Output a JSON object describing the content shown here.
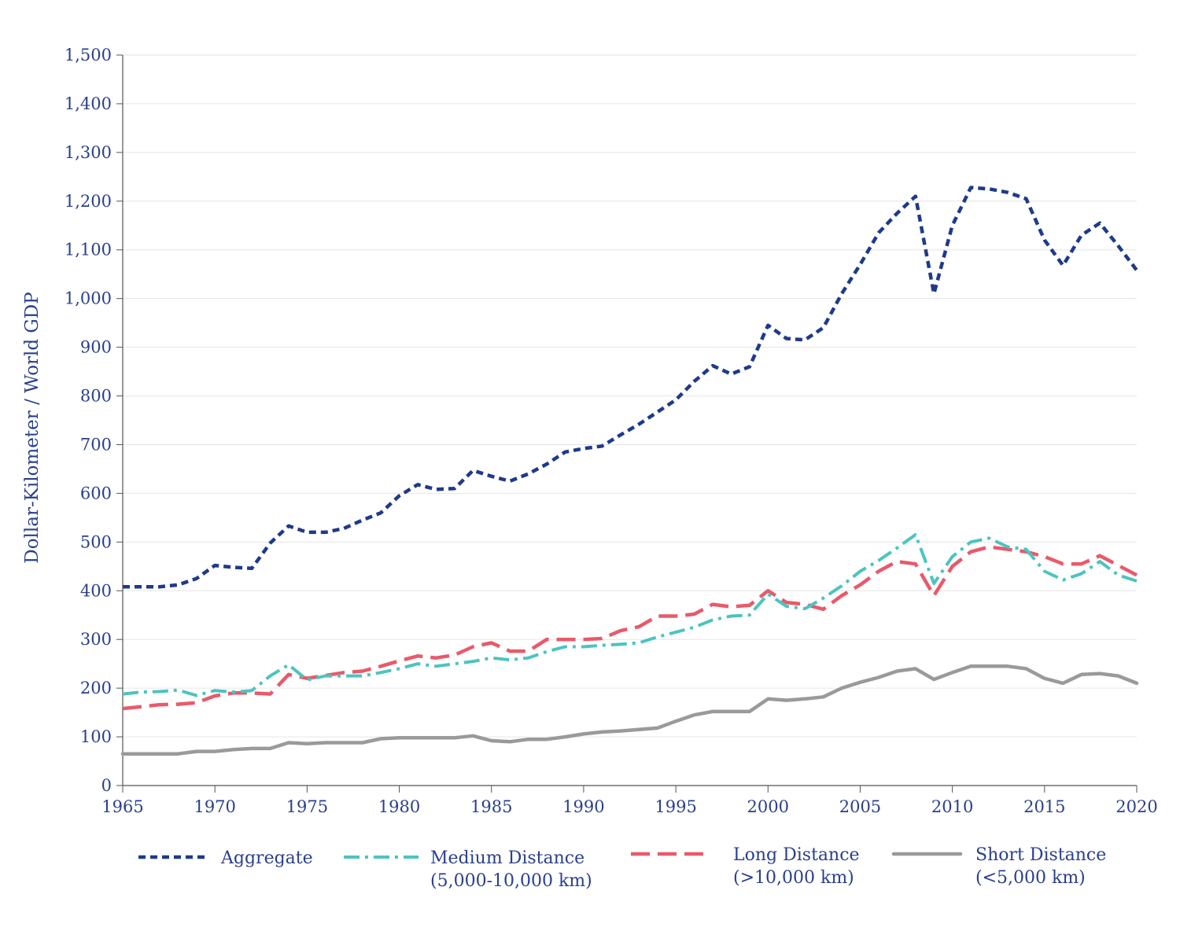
{
  "chart_data": {
    "type": "line",
    "title": "",
    "xlabel": "",
    "ylabel": "Dollar-Kilometer / World GDP",
    "xlim": [
      1965,
      2020
    ],
    "ylim": [
      0,
      1500
    ],
    "x_ticks": [
      "1965",
      "1970",
      "1975",
      "1980",
      "1985",
      "1990",
      "1995",
      "2000",
      "2005",
      "2010",
      "2015",
      "2020"
    ],
    "y_ticks": [
      "0",
      "100",
      "200",
      "300",
      "400",
      "500",
      "600",
      "700",
      "800",
      "900",
      "1,000",
      "1,100",
      "1,200",
      "1,300",
      "1,400",
      "1,500"
    ],
    "grid": "horizontal",
    "legend_position": "bottom",
    "series": [
      {
        "name": "Aggregate",
        "color": "#1f3a8a",
        "style": "dotted",
        "x": [
          1965,
          1966,
          1967,
          1968,
          1969,
          1970,
          1971,
          1972,
          1973,
          1974,
          1975,
          1976,
          1977,
          1978,
          1979,
          1980,
          1981,
          1982,
          1983,
          1984,
          1985,
          1986,
          1987,
          1988,
          1989,
          1990,
          1991,
          1992,
          1993,
          1994,
          1995,
          1996,
          1997,
          1998,
          1999,
          2000,
          2001,
          2002,
          2003,
          2004,
          2005,
          2006,
          2007,
          2008,
          2009,
          2010,
          2011,
          2012,
          2013,
          2014,
          2015,
          2016,
          2017,
          2018,
          2019,
          2020
        ],
        "values": [
          408,
          408,
          408,
          412,
          425,
          452,
          448,
          446,
          498,
          533,
          520,
          520,
          528,
          545,
          560,
          595,
          618,
          608,
          610,
          647,
          635,
          625,
          640,
          660,
          685,
          692,
          697,
          720,
          742,
          767,
          792,
          830,
          862,
          845,
          860,
          945,
          918,
          915,
          940,
          1010,
          1070,
          1135,
          1175,
          1210,
          1010,
          1150,
          1228,
          1225,
          1218,
          1205,
          1120,
          1068,
          1130,
          1155,
          1108,
          1058
        ]
      },
      {
        "name": "Medium Distance",
        "name_line2": "(5,000-10,000 km)",
        "color": "#4cc4c0",
        "style": "dash-dot",
        "x": [
          1965,
          1966,
          1967,
          1968,
          1969,
          1970,
          1971,
          1972,
          1973,
          1974,
          1975,
          1976,
          1977,
          1978,
          1979,
          1980,
          1981,
          1982,
          1983,
          1984,
          1985,
          1986,
          1987,
          1988,
          1989,
          1990,
          1991,
          1992,
          1993,
          1994,
          1995,
          1996,
          1997,
          1998,
          1999,
          2000,
          2001,
          2002,
          2003,
          2004,
          2005,
          2006,
          2007,
          2008,
          2009,
          2010,
          2011,
          2012,
          2013,
          2014,
          2015,
          2016,
          2017,
          2018,
          2019,
          2020
        ],
        "values": [
          188,
          192,
          193,
          196,
          185,
          195,
          192,
          195,
          225,
          248,
          217,
          225,
          225,
          225,
          232,
          240,
          250,
          245,
          250,
          255,
          262,
          258,
          262,
          275,
          285,
          285,
          288,
          290,
          293,
          305,
          315,
          325,
          340,
          348,
          350,
          393,
          368,
          363,
          385,
          410,
          440,
          462,
          488,
          515,
          415,
          470,
          500,
          508,
          490,
          485,
          440,
          422,
          435,
          460,
          432,
          420
        ]
      },
      {
        "name": "Long Distance",
        "name_line2": "(>10,000 km)",
        "color": "#e85a6a",
        "style": "long-dash",
        "x": [
          1965,
          1966,
          1967,
          1968,
          1969,
          1970,
          1971,
          1972,
          1973,
          1974,
          1975,
          1976,
          1977,
          1978,
          1979,
          1980,
          1981,
          1982,
          1983,
          1984,
          1985,
          1986,
          1987,
          1988,
          1989,
          1990,
          1991,
          1992,
          1993,
          1994,
          1995,
          1996,
          1997,
          1998,
          1999,
          2000,
          2001,
          2002,
          2003,
          2004,
          2005,
          2006,
          2007,
          2008,
          2009,
          2010,
          2011,
          2012,
          2013,
          2014,
          2015,
          2016,
          2017,
          2018,
          2019,
          2020
        ],
        "values": [
          158,
          162,
          166,
          167,
          170,
          184,
          190,
          190,
          188,
          228,
          220,
          226,
          232,
          235,
          245,
          256,
          266,
          262,
          268,
          285,
          293,
          276,
          276,
          300,
          300,
          300,
          302,
          318,
          326,
          348,
          348,
          352,
          372,
          367,
          370,
          400,
          376,
          372,
          362,
          390,
          412,
          440,
          460,
          455,
          390,
          450,
          480,
          490,
          485,
          480,
          470,
          455,
          455,
          472,
          452,
          432
        ]
      },
      {
        "name": "Short Distance",
        "name_line2": "(<5,000 km)",
        "color": "#9a9a9a",
        "style": "solid",
        "x": [
          1965,
          1966,
          1967,
          1968,
          1969,
          1970,
          1971,
          1972,
          1973,
          1974,
          1975,
          1976,
          1977,
          1978,
          1979,
          1980,
          1981,
          1982,
          1983,
          1984,
          1985,
          1986,
          1987,
          1988,
          1989,
          1990,
          1991,
          1992,
          1993,
          1994,
          1995,
          1996,
          1997,
          1998,
          1999,
          2000,
          2001,
          2002,
          2003,
          2004,
          2005,
          2006,
          2007,
          2008,
          2009,
          2010,
          2011,
          2012,
          2013,
          2014,
          2015,
          2016,
          2017,
          2018,
          2019,
          2020
        ],
        "values": [
          65,
          65,
          65,
          65,
          70,
          70,
          74,
          76,
          76,
          88,
          86,
          88,
          88,
          88,
          96,
          98,
          98,
          98,
          98,
          102,
          92,
          90,
          95,
          95,
          100,
          106,
          110,
          112,
          115,
          118,
          132,
          145,
          152,
          152,
          152,
          178,
          175,
          178,
          182,
          200,
          212,
          222,
          235,
          240,
          218,
          232,
          245,
          245,
          245,
          240,
          220,
          210,
          228,
          230,
          225,
          210
        ]
      }
    ]
  }
}
